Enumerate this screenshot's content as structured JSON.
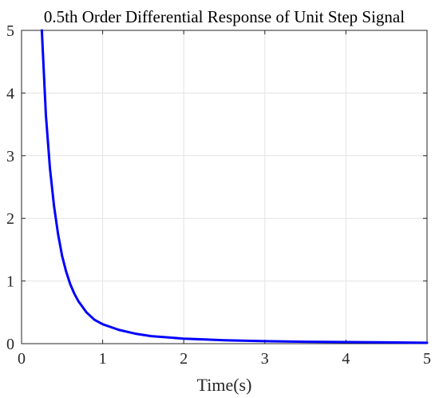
{
  "chart_data": {
    "type": "line",
    "title": "0.5th Order Differential Response of Unit Step Signal",
    "xlabel": "Time(s)",
    "ylabel": "",
    "xlim": [
      0,
      5
    ],
    "ylim": [
      0,
      5
    ],
    "xticks": [
      "0",
      "1",
      "2",
      "3",
      "4",
      "5"
    ],
    "yticks": [
      "0",
      "1",
      "2",
      "3",
      "4",
      "5"
    ],
    "grid": true,
    "series": [
      {
        "color": "#0000ff",
        "x": [
          0.25,
          0.3,
          0.35,
          0.4,
          0.45,
          0.5,
          0.55,
          0.6,
          0.65,
          0.7,
          0.8,
          0.9,
          1.0,
          1.2,
          1.4,
          1.6,
          1.8,
          2.0,
          2.5,
          3.0,
          3.5,
          4.0,
          4.5,
          5.0
        ],
        "y": [
          5.0,
          3.65,
          2.8,
          2.2,
          1.75,
          1.4,
          1.15,
          0.95,
          0.8,
          0.68,
          0.5,
          0.38,
          0.31,
          0.22,
          0.16,
          0.12,
          0.1,
          0.08,
          0.055,
          0.04,
          0.03,
          0.025,
          0.02,
          0.015
        ]
      }
    ]
  }
}
